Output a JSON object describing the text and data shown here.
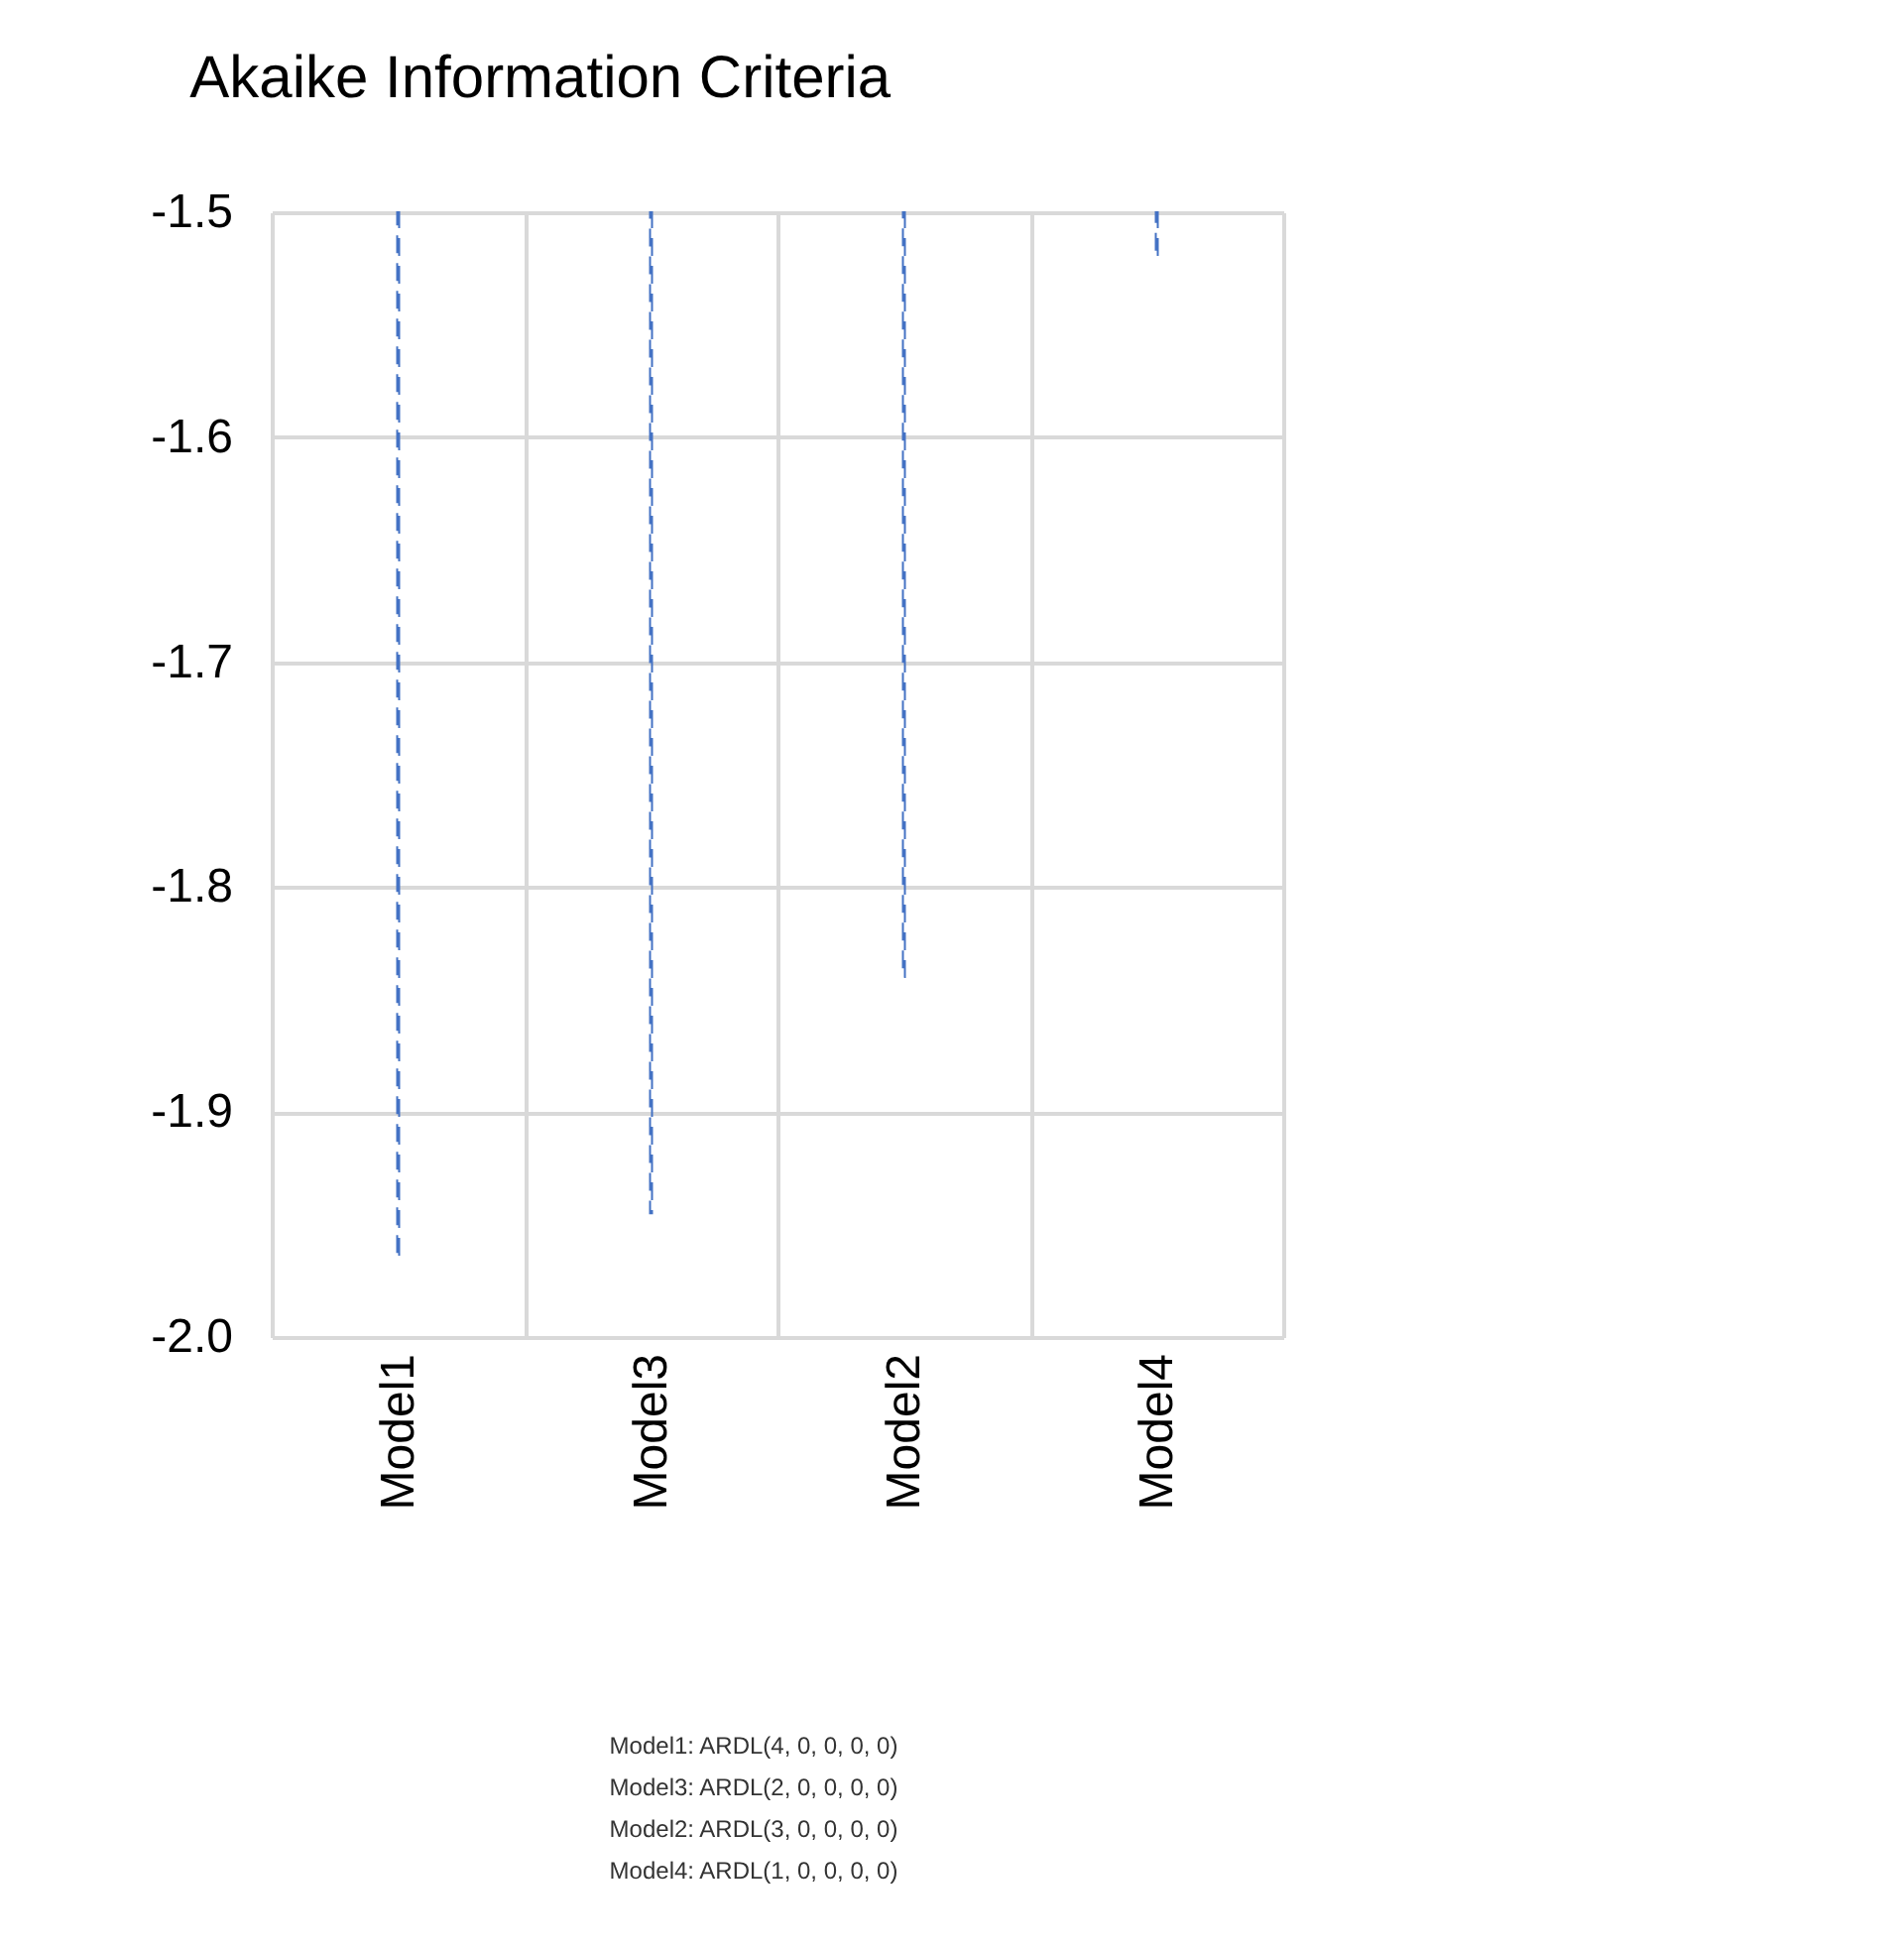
{
  "chart_data": {
    "type": "bar",
    "title": "Akaike Information Criteria",
    "categories": [
      "Model1",
      "Model3",
      "Model2",
      "Model4"
    ],
    "values": [
      -1.965,
      -1.945,
      -1.84,
      -1.52
    ],
    "color": "#4472c4",
    "ylim": [
      -2.0,
      -1.5
    ],
    "yticks": [
      {
        "value": -2.0,
        "label": "-2.0"
      },
      -1.9,
      -1.8,
      -1.7,
      -1.6,
      -1.5
    ],
    "grid": true,
    "line_style": "dashed",
    "annotations": [
      "Model1: ARDL(4, 0, 0, 0, 0)",
      "Model3: ARDL(2, 0, 0, 0, 0)",
      "Model2: ARDL(3, 0, 0, 0, 0)",
      "Model4: ARDL(1, 0, 0, 0, 0)"
    ]
  }
}
